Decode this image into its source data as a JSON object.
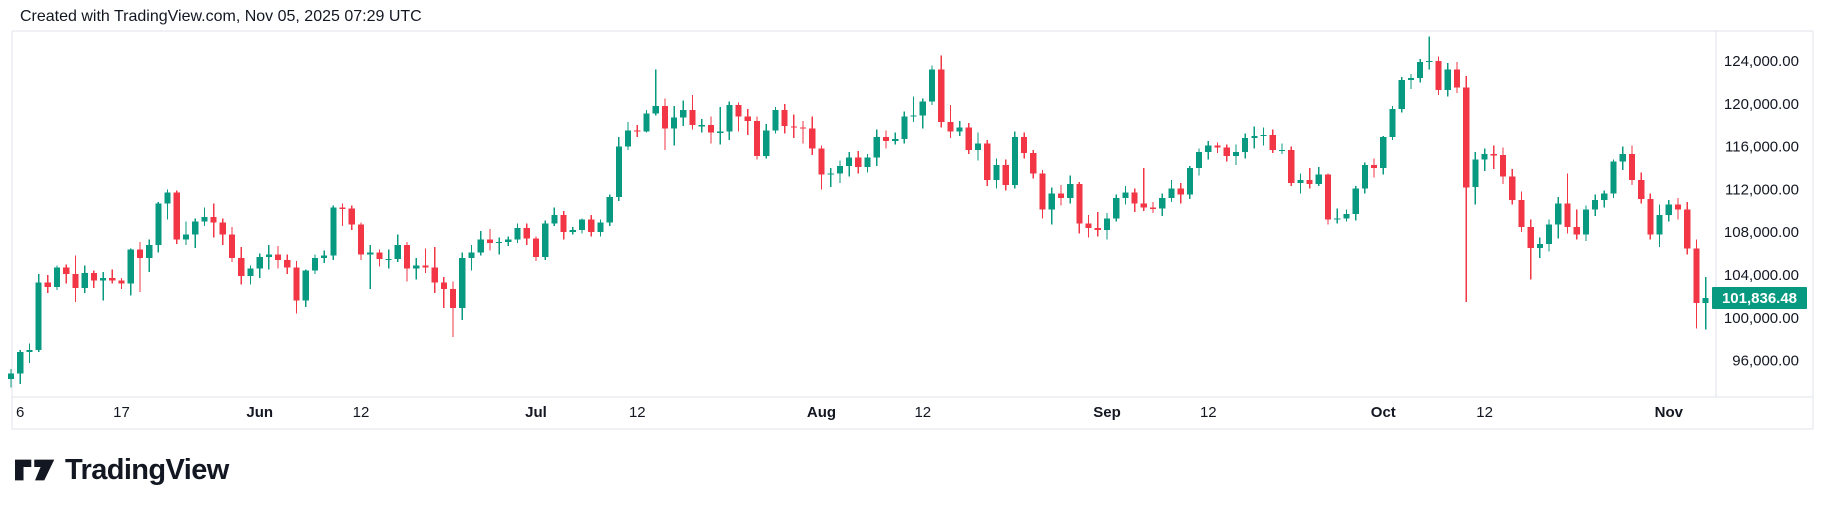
{
  "header": {
    "attribution": "Created with TradingView.com, Nov 05, 2025 07:29 UTC"
  },
  "footer": {
    "brand": "TradingView"
  },
  "price_badge": {
    "value": "101,836.48"
  },
  "colors": {
    "up": "#089981",
    "down": "#F23645",
    "text": "#131722",
    "border": "#E0E3EB",
    "badge_bg": "#089981",
    "badge_text": "#FFFFFF",
    "logo": "#131722"
  },
  "chart_data": {
    "type": "candlestick",
    "interval": "1D",
    "start_date": "2025-05-05",
    "grid": false,
    "legend_position": "none",
    "price_axis": {
      "side": "right",
      "min": 92600,
      "max": 126800,
      "last_price": 101836.48,
      "last_price_label": "101,836.48",
      "ticks": [
        {
          "value": 124000,
          "label": "124,000.00"
        },
        {
          "value": 120000,
          "label": "120,000.00"
        },
        {
          "value": 116000,
          "label": "116,000.00"
        },
        {
          "value": 112000,
          "label": "112,000.00"
        },
        {
          "value": 108000,
          "label": "108,000.00"
        },
        {
          "value": 104000,
          "label": "104,000.00"
        },
        {
          "value": 100000,
          "label": "100,000.00"
        },
        {
          "value": 96000,
          "label": "96,000.00"
        }
      ]
    },
    "time_axis": {
      "ticks": [
        {
          "label": "6",
          "index": 1,
          "bold": false
        },
        {
          "label": "17",
          "index": 12,
          "bold": false
        },
        {
          "label": "Jun",
          "index": 27,
          "bold": true
        },
        {
          "label": "12",
          "index": 38,
          "bold": false
        },
        {
          "label": "Jul",
          "index": 57,
          "bold": true
        },
        {
          "label": "12",
          "index": 68,
          "bold": false
        },
        {
          "label": "Aug",
          "index": 88,
          "bold": true
        },
        {
          "label": "12",
          "index": 99,
          "bold": false
        },
        {
          "label": "Sep",
          "index": 119,
          "bold": true
        },
        {
          "label": "12",
          "index": 130,
          "bold": false
        },
        {
          "label": "Oct",
          "index": 149,
          "bold": true
        },
        {
          "label": "12",
          "index": 160,
          "bold": false
        },
        {
          "label": "Nov",
          "index": 180,
          "bold": true
        }
      ]
    },
    "candles": [
      [
        94300,
        95200,
        93500,
        94800
      ],
      [
        94800,
        97000,
        93800,
        96800
      ],
      [
        96800,
        97600,
        95800,
        97000
      ],
      [
        97000,
        104100,
        96800,
        103300
      ],
      [
        103300,
        104000,
        102300,
        102900
      ],
      [
        102900,
        104900,
        102600,
        104700
      ],
      [
        104700,
        105000,
        103200,
        104100
      ],
      [
        104100,
        105800,
        101500,
        102800
      ],
      [
        102800,
        104900,
        102300,
        104200
      ],
      [
        104200,
        104400,
        102800,
        103500
      ],
      [
        103500,
        104300,
        101600,
        103700
      ],
      [
        103700,
        104500,
        103200,
        103500
      ],
      [
        103500,
        103700,
        102700,
        103200
      ],
      [
        103200,
        106500,
        102100,
        106400
      ],
      [
        106400,
        107100,
        102400,
        105600
      ],
      [
        105600,
        107300,
        104300,
        106800
      ],
      [
        106800,
        110800,
        106100,
        110700
      ],
      [
        110700,
        112000,
        109200,
        111700
      ],
      [
        111700,
        111900,
        106900,
        107300
      ],
      [
        107300,
        109000,
        106800,
        107800
      ],
      [
        107800,
        109300,
        106500,
        109000
      ],
      [
        109000,
        110300,
        108600,
        109400
      ],
      [
        109400,
        110700,
        107500,
        108900
      ],
      [
        108900,
        109300,
        106800,
        107800
      ],
      [
        107800,
        108500,
        105200,
        105600
      ],
      [
        105600,
        106600,
        103100,
        103900
      ],
      [
        103900,
        104900,
        103100,
        104600
      ],
      [
        104600,
        106000,
        103700,
        105700
      ],
      [
        105700,
        106800,
        104500,
        105900
      ],
      [
        105900,
        106700,
        104600,
        105400
      ],
      [
        105400,
        105900,
        104100,
        104700
      ],
      [
        104700,
        105300,
        100400,
        101600
      ],
      [
        101600,
        104500,
        101000,
        104400
      ],
      [
        104400,
        105900,
        104100,
        105600
      ],
      [
        105600,
        106300,
        105100,
        105800
      ],
      [
        105800,
        110500,
        105400,
        110300
      ],
      [
        110300,
        110700,
        108600,
        110200
      ],
      [
        110200,
        110500,
        108200,
        108700
      ],
      [
        108700,
        108900,
        105400,
        105900
      ],
      [
        105900,
        106800,
        102700,
        106100
      ],
      [
        106100,
        106400,
        104800,
        105500
      ],
      [
        105500,
        106400,
        104600,
        105500
      ],
      [
        105500,
        107800,
        105200,
        106800
      ],
      [
        106800,
        107100,
        103400,
        104600
      ],
      [
        104600,
        105600,
        103600,
        104900
      ],
      [
        104900,
        106500,
        104200,
        104700
      ],
      [
        104700,
        106600,
        102300,
        103300
      ],
      [
        103300,
        103800,
        100900,
        102700
      ],
      [
        102700,
        103400,
        98200,
        100900
      ],
      [
        100900,
        106100,
        99800,
        105600
      ],
      [
        105600,
        106800,
        104400,
        106100
      ],
      [
        106100,
        108100,
        105800,
        107300
      ],
      [
        107300,
        108300,
        106300,
        107000
      ],
      [
        107000,
        107500,
        105900,
        107100
      ],
      [
        107100,
        107600,
        106700,
        107300
      ],
      [
        107300,
        108800,
        107000,
        108400
      ],
      [
        108400,
        108800,
        106800,
        107400
      ],
      [
        107400,
        107600,
        105300,
        105700
      ],
      [
        105700,
        109100,
        105400,
        108800
      ],
      [
        108800,
        110300,
        108600,
        109600
      ],
      [
        109600,
        110000,
        107300,
        108000
      ],
      [
        108000,
        108500,
        107800,
        108200
      ],
      [
        108200,
        109300,
        107900,
        109200
      ],
      [
        109200,
        109600,
        107600,
        108000
      ],
      [
        108000,
        109200,
        107600,
        108900
      ],
      [
        108900,
        111500,
        108600,
        111300
      ],
      [
        111300,
        116900,
        110900,
        116000
      ],
      [
        116000,
        118300,
        115700,
        117500
      ],
      [
        117500,
        118000,
        116900,
        117400
      ],
      [
        117400,
        119400,
        117300,
        119100
      ],
      [
        119100,
        123200,
        118900,
        119800
      ],
      [
        119800,
        120500,
        115700,
        117700
      ],
      [
        117700,
        119800,
        116100,
        118700
      ],
      [
        118700,
        120300,
        117900,
        119400
      ],
      [
        119400,
        120800,
        117600,
        118000
      ],
      [
        118000,
        118600,
        117300,
        118000
      ],
      [
        118000,
        118800,
        116300,
        117300
      ],
      [
        117300,
        119700,
        116200,
        117400
      ],
      [
        117400,
        120200,
        116600,
        119900
      ],
      [
        119900,
        120100,
        117400,
        118800
      ],
      [
        118800,
        119500,
        117100,
        118400
      ],
      [
        118400,
        118800,
        114800,
        115100
      ],
      [
        115100,
        118100,
        114900,
        117500
      ],
      [
        117500,
        119700,
        117200,
        119400
      ],
      [
        119400,
        120000,
        117200,
        117900
      ],
      [
        117900,
        119000,
        116800,
        117800
      ],
      [
        117800,
        118400,
        116300,
        117700
      ],
      [
        117700,
        118800,
        115200,
        115800
      ],
      [
        115800,
        116100,
        112000,
        113400
      ],
      [
        113400,
        114000,
        112200,
        113500
      ],
      [
        113500,
        114700,
        112600,
        114200
      ],
      [
        114200,
        115500,
        113200,
        115000
      ],
      [
        115000,
        115600,
        113500,
        114100
      ],
      [
        114100,
        115300,
        113600,
        115000
      ],
      [
        115000,
        117600,
        114200,
        116900
      ],
      [
        116900,
        117500,
        115800,
        116500
      ],
      [
        116500,
        117300,
        116200,
        116700
      ],
      [
        116700,
        119300,
        116300,
        118800
      ],
      [
        118800,
        120700,
        118300,
        118900
      ],
      [
        118900,
        120500,
        117700,
        120200
      ],
      [
        120200,
        123600,
        119900,
        123200
      ],
      [
        123200,
        124500,
        117800,
        118300
      ],
      [
        118300,
        119900,
        116800,
        117400
      ],
      [
        117400,
        118400,
        117000,
        117800
      ],
      [
        117800,
        118200,
        115300,
        115700
      ],
      [
        115700,
        117300,
        114700,
        116300
      ],
      [
        116300,
        116600,
        112300,
        112900
      ],
      [
        112900,
        114900,
        112100,
        114300
      ],
      [
        114300,
        114800,
        111900,
        112400
      ],
      [
        112400,
        117400,
        112100,
        116900
      ],
      [
        116900,
        117300,
        114900,
        115400
      ],
      [
        115400,
        115700,
        113000,
        113500
      ],
      [
        113500,
        113800,
        109300,
        110100
      ],
      [
        110100,
        112200,
        108700,
        111600
      ],
      [
        111600,
        112400,
        110500,
        111200
      ],
      [
        111200,
        113300,
        110700,
        112500
      ],
      [
        112500,
        112700,
        107900,
        108800
      ],
      [
        108800,
        109600,
        107500,
        108400
      ],
      [
        108400,
        109900,
        107600,
        108200
      ],
      [
        108200,
        109800,
        107300,
        109300
      ],
      [
        109300,
        111500,
        109000,
        111200
      ],
      [
        111200,
        112300,
        110600,
        111700
      ],
      [
        111700,
        112100,
        109900,
        110700
      ],
      [
        110700,
        114000,
        110000,
        110300
      ],
      [
        110300,
        110800,
        109800,
        110200
      ],
      [
        110200,
        111600,
        109500,
        111200
      ],
      [
        111200,
        112900,
        110800,
        112100
      ],
      [
        112100,
        112600,
        110700,
        111500
      ],
      [
        111500,
        114200,
        111100,
        114000
      ],
      [
        114000,
        115800,
        113300,
        115500
      ],
      [
        115500,
        116500,
        114800,
        116100
      ],
      [
        116100,
        116400,
        115400,
        115900
      ],
      [
        115900,
        116200,
        114600,
        115100
      ],
      [
        115100,
        116200,
        114300,
        115500
      ],
      [
        115500,
        117200,
        114900,
        116800
      ],
      [
        116800,
        117900,
        115800,
        117000
      ],
      [
        117000,
        117800,
        116100,
        117100
      ],
      [
        117100,
        117600,
        115400,
        115700
      ],
      [
        115700,
        116300,
        115300,
        115700
      ],
      [
        115700,
        116000,
        112300,
        112600
      ],
      [
        112600,
        113500,
        111600,
        112900
      ],
      [
        112900,
        114000,
        112100,
        112500
      ],
      [
        112500,
        114100,
        112300,
        113400
      ],
      [
        113400,
        113500,
        108700,
        109200
      ],
      [
        109200,
        110200,
        108800,
        109300
      ],
      [
        109300,
        110100,
        109000,
        109700
      ],
      [
        109700,
        112300,
        109100,
        112100
      ],
      [
        112100,
        114500,
        111600,
        114300
      ],
      [
        114300,
        114900,
        113100,
        114000
      ],
      [
        114000,
        117000,
        113400,
        116900
      ],
      [
        116900,
        119800,
        116600,
        119500
      ],
      [
        119500,
        122500,
        119200,
        122200
      ],
      [
        122200,
        122800,
        121400,
        122400
      ],
      [
        122400,
        124200,
        122000,
        123900
      ],
      [
        123900,
        126300,
        123200,
        124000
      ],
      [
        124000,
        124400,
        120800,
        121300
      ],
      [
        121300,
        123800,
        120700,
        123200
      ],
      [
        123200,
        123900,
        121000,
        121500
      ],
      [
        121500,
        122600,
        101500,
        112200
      ],
      [
        112200,
        115500,
        110600,
        114800
      ],
      [
        114800,
        115800,
        113700,
        115300
      ],
      [
        115300,
        116100,
        113900,
        115200
      ],
      [
        115200,
        115900,
        112500,
        113200
      ],
      [
        113200,
        113900,
        110600,
        111000
      ],
      [
        111000,
        111800,
        108000,
        108500
      ],
      [
        108500,
        109200,
        103600,
        106500
      ],
      [
        106500,
        107500,
        105600,
        106900
      ],
      [
        106900,
        109200,
        106200,
        108700
      ],
      [
        108700,
        111300,
        107400,
        110700
      ],
      [
        110700,
        113500,
        107900,
        108500
      ],
      [
        108500,
        110100,
        107300,
        107800
      ],
      [
        107800,
        110500,
        107200,
        110100
      ],
      [
        110100,
        111500,
        109500,
        111000
      ],
      [
        111000,
        111900,
        110300,
        111600
      ],
      [
        111600,
        114800,
        111200,
        114600
      ],
      [
        114600,
        116000,
        113800,
        115300
      ],
      [
        115300,
        116100,
        112400,
        112900
      ],
      [
        112900,
        113600,
        110700,
        111100
      ],
      [
        111100,
        111600,
        107300,
        107800
      ],
      [
        107800,
        110600,
        106600,
        109600
      ],
      [
        109600,
        111000,
        109000,
        110600
      ],
      [
        110600,
        111200,
        109200,
        110100
      ],
      [
        110100,
        110800,
        105900,
        106500
      ],
      [
        106500,
        107300,
        99000,
        101400
      ],
      [
        101400,
        103800,
        98900,
        101836.48
      ]
    ]
  }
}
